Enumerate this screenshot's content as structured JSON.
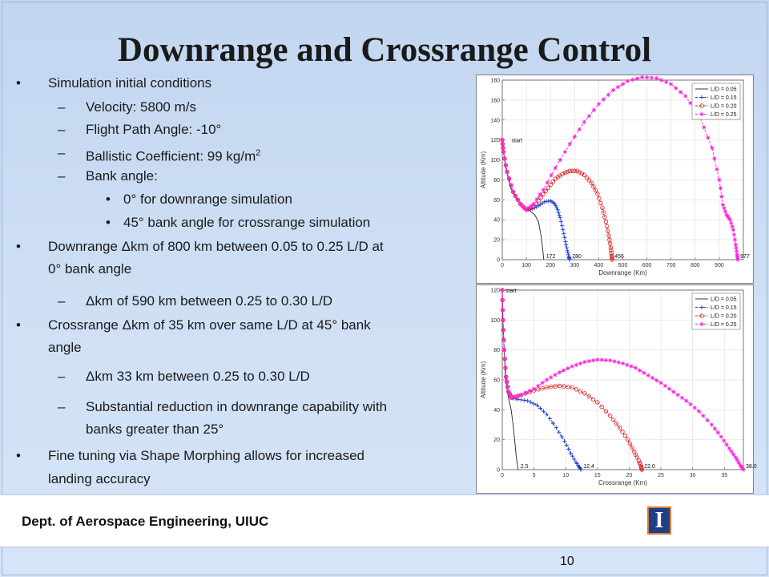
{
  "slide": {
    "title": "Downrange and Crossrange Control",
    "footer_dept": "Dept. of Aerospace Engineering, UIUC",
    "logo_letter": "I",
    "page_number": "10",
    "colors": {
      "background": "#c7d9f1",
      "footer": "#ffffff",
      "logo_blue": "#1d3f87",
      "logo_orange": "#e07a2e"
    }
  },
  "bullets": [
    {
      "level": 1,
      "marker": "•",
      "lines": [
        "Simulation initial conditions"
      ]
    },
    {
      "level": 2,
      "marker": "–",
      "lines": [
        "Velocity: 5800 m/s"
      ]
    },
    {
      "level": 2,
      "marker": "–",
      "lines": [
        "Flight Path Angle: -10°"
      ]
    },
    {
      "level": 2,
      "marker": "–",
      "lines": [
        "Ballistic Coefficient: 99 kg/m"
      ],
      "sup": "2"
    },
    {
      "level": 2,
      "marker": "–",
      "lines": [
        "Bank angle:"
      ]
    },
    {
      "level": 3,
      "marker": "•",
      "lines": [
        "0° for downrange simulation"
      ]
    },
    {
      "level": 3,
      "marker": "•",
      "lines": [
        "45° bank angle for crossrange simulation"
      ]
    },
    {
      "level": 1,
      "marker": "•",
      "lines": [
        "Downrange Δkm of 800 km between 0.05 to 0.25 L/D at",
        "0° bank angle"
      ]
    },
    {
      "level": 2,
      "marker": "–",
      "lines": [
        "Δkm of 590 km between 0.25 to 0.30 L/D"
      ]
    },
    {
      "level": 1,
      "marker": "•",
      "lines": [
        "Crossrange Δkm of 35 km over same L/D at 45° bank",
        "angle"
      ]
    },
    {
      "level": 2,
      "marker": "–",
      "lines": [
        "Δkm 33 km between 0.25 to 0.30 L/D"
      ]
    },
    {
      "level": 2,
      "marker": "–",
      "lines": [
        "Substantial reduction in downrange capability with",
        "banks greater than 25°"
      ]
    },
    {
      "level": 1,
      "marker": "•",
      "lines": [
        "Fine tuning via Shape Morphing allows for increased",
        "landing accuracy"
      ]
    }
  ],
  "chart_data": [
    {
      "type": "line",
      "xlabel": "Downrange (Km)",
      "ylabel": "Altitude (Km)",
      "xlim": [
        0,
        1000
      ],
      "ylim": [
        0,
        180
      ],
      "xticks": [
        0,
        100,
        200,
        300,
        400,
        500,
        600,
        700,
        800,
        900
      ],
      "yticks": [
        0,
        20,
        40,
        60,
        80,
        100,
        120,
        140,
        160,
        180
      ],
      "legend_position": "top-right",
      "grid": true,
      "annotations": [
        {
          "text": "start",
          "x": 25,
          "y": 120
        },
        {
          "text": "172",
          "x": 172,
          "y": 0
        },
        {
          "text": "280",
          "x": 280,
          "y": 0
        },
        {
          "text": "456",
          "x": 456,
          "y": 0
        },
        {
          "text": "977",
          "x": 977,
          "y": 0
        }
      ],
      "series": [
        {
          "name": "L/D = 0.05",
          "color": "#222222",
          "style": "solid",
          "marker": "none",
          "x": [
            0,
            5,
            15,
            35,
            60,
            90,
            115,
            135,
            150,
            160,
            166,
            170,
            172
          ],
          "y": [
            120,
            108,
            92,
            72,
            60,
            52,
            49,
            45,
            38,
            25,
            14,
            5,
            0
          ]
        },
        {
          "name": "L/D = 0.15",
          "color": "#1f3fd0",
          "style": "dashed",
          "marker": "plus",
          "x": [
            0,
            5,
            20,
            45,
            75,
            100,
            125,
            150,
            175,
            200,
            218,
            230,
            240,
            252,
            262,
            270,
            276,
            280
          ],
          "y": [
            120,
            108,
            88,
            68,
            56,
            50,
            51,
            54,
            58,
            59,
            56,
            50,
            42,
            30,
            18,
            9,
            3,
            0
          ]
        },
        {
          "name": "L/D = 0.20",
          "color": "#e02020",
          "style": "dashed",
          "marker": "circle",
          "x": [
            0,
            5,
            20,
            45,
            75,
            100,
            130,
            160,
            190,
            220,
            250,
            280,
            310,
            340,
            370,
            395,
            415,
            430,
            442,
            450,
            454,
            456
          ],
          "y": [
            120,
            108,
            88,
            68,
            56,
            50,
            53,
            62,
            72,
            81,
            86,
            89,
            89,
            85,
            77,
            66,
            52,
            38,
            24,
            12,
            4,
            0
          ]
        },
        {
          "name": "L/D = 0.25",
          "color": "#ff22dd",
          "style": "dashed",
          "marker": "star",
          "x": [
            0,
            5,
            20,
            45,
            75,
            100,
            130,
            170,
            220,
            280,
            340,
            400,
            460,
            520,
            580,
            640,
            700,
            760,
            820,
            870,
            900,
            915,
            930,
            945,
            958,
            968,
            974,
            977
          ],
          "y": [
            120,
            108,
            88,
            68,
            56,
            50,
            56,
            70,
            92,
            116,
            138,
            156,
            170,
            179,
            183,
            182,
            176,
            164,
            143,
            112,
            80,
            55,
            45,
            40,
            30,
            15,
            5,
            0
          ]
        }
      ]
    },
    {
      "type": "line",
      "xlabel": "Crossrange (Km)",
      "ylabel": "Altitude (Km)",
      "xlim": [
        0,
        38
      ],
      "ylim": [
        0,
        120
      ],
      "xticks": [
        0,
        5,
        10,
        15,
        20,
        25,
        30,
        35
      ],
      "yticks": [
        0,
        20,
        40,
        60,
        80,
        100,
        120
      ],
      "legend_position": "top-right",
      "grid": true,
      "annotations": [
        {
          "text": "start",
          "x": 0,
          "y": 120
        },
        {
          "text": "2.5",
          "x": 2.5,
          "y": 0
        },
        {
          "text": "12.4",
          "x": 12.4,
          "y": 0
        },
        {
          "text": "22.0",
          "x": 22.0,
          "y": 0
        },
        {
          "text": "38.0",
          "x": 38.0,
          "y": 0
        }
      ],
      "series": [
        {
          "name": "L/D = 0.05",
          "color": "#222222",
          "style": "solid",
          "marker": "none",
          "x": [
            0,
            0.1,
            0.3,
            0.5,
            0.8,
            1.1,
            1.4,
            1.7,
            2.0,
            2.2,
            2.4,
            2.5
          ],
          "y": [
            120,
            100,
            80,
            62,
            52,
            46,
            40,
            30,
            18,
            9,
            3,
            0
          ]
        },
        {
          "name": "L/D = 0.15",
          "color": "#1f3fd0",
          "style": "dashed",
          "marker": "plus",
          "x": [
            0,
            0.1,
            0.3,
            0.6,
            1.0,
            1.5,
            2.5,
            4.0,
            5.5,
            7.0,
            8.5,
            9.8,
            10.8,
            11.6,
            12.1,
            12.4
          ],
          "y": [
            120,
            100,
            80,
            62,
            52,
            48,
            47,
            46,
            43,
            37,
            28,
            19,
            11,
            5,
            2,
            0
          ]
        },
        {
          "name": "L/D = 0.20",
          "color": "#e02020",
          "style": "dashed",
          "marker": "circle",
          "x": [
            0,
            0.1,
            0.3,
            0.6,
            1.0,
            1.5,
            3,
            5,
            7,
            9,
            11,
            13,
            15,
            17,
            18.5,
            19.8,
            20.8,
            21.5,
            21.9,
            22.0
          ],
          "y": [
            120,
            100,
            80,
            62,
            52,
            48,
            50,
            53,
            55,
            56,
            55,
            51,
            45,
            36,
            28,
            20,
            12,
            6,
            2,
            0
          ]
        },
        {
          "name": "L/D = 0.25",
          "color": "#ff22dd",
          "style": "dashed",
          "marker": "star",
          "x": [
            0,
            0.1,
            0.3,
            0.6,
            1.0,
            1.5,
            3,
            5,
            7,
            9,
            11,
            13,
            15,
            17,
            19,
            21,
            23,
            25,
            27,
            29,
            31,
            33,
            34.5,
            35.8,
            36.8,
            37.5,
            38.0
          ],
          "y": [
            120,
            100,
            80,
            62,
            52,
            48,
            50,
            54,
            60,
            65,
            69,
            72,
            73.5,
            73,
            71,
            68,
            63,
            58,
            52,
            46,
            39,
            30,
            22,
            14,
            8,
            3,
            0
          ]
        }
      ]
    }
  ]
}
